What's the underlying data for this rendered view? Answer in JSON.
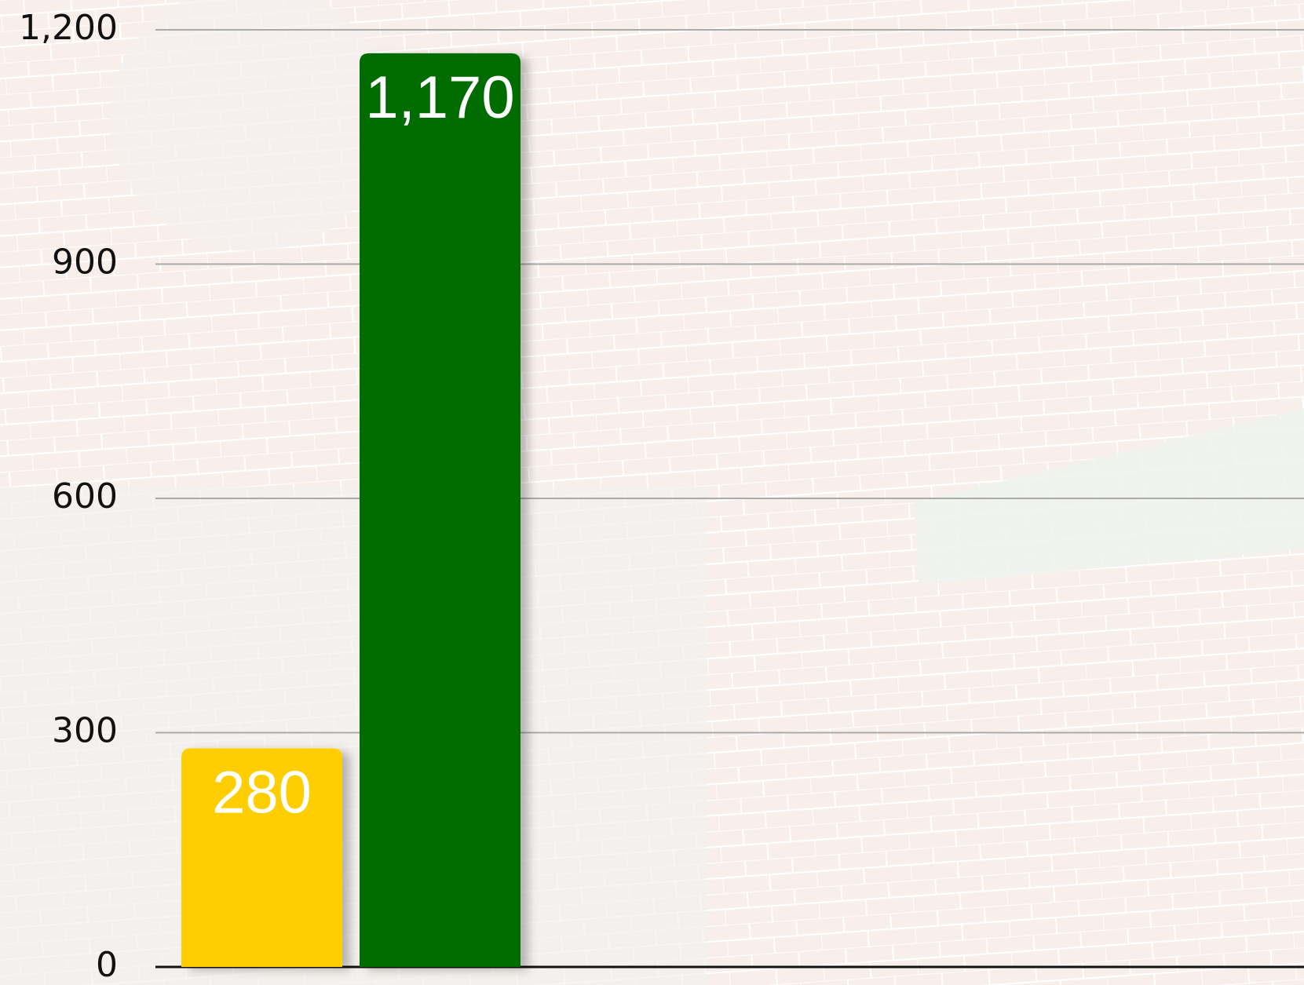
{
  "chart_data": {
    "type": "bar",
    "categories": [
      null,
      null
    ],
    "values": [
      280,
      1170
    ],
    "value_labels": [
      "280",
      "1,170"
    ],
    "colors": [
      "#ffce00",
      "#006c00"
    ],
    "ylim": [
      0,
      1200
    ],
    "yticks": [
      0,
      300,
      600,
      900,
      {
        "value": 1200,
        "label": "1,200"
      }
    ],
    "grid": true
  }
}
